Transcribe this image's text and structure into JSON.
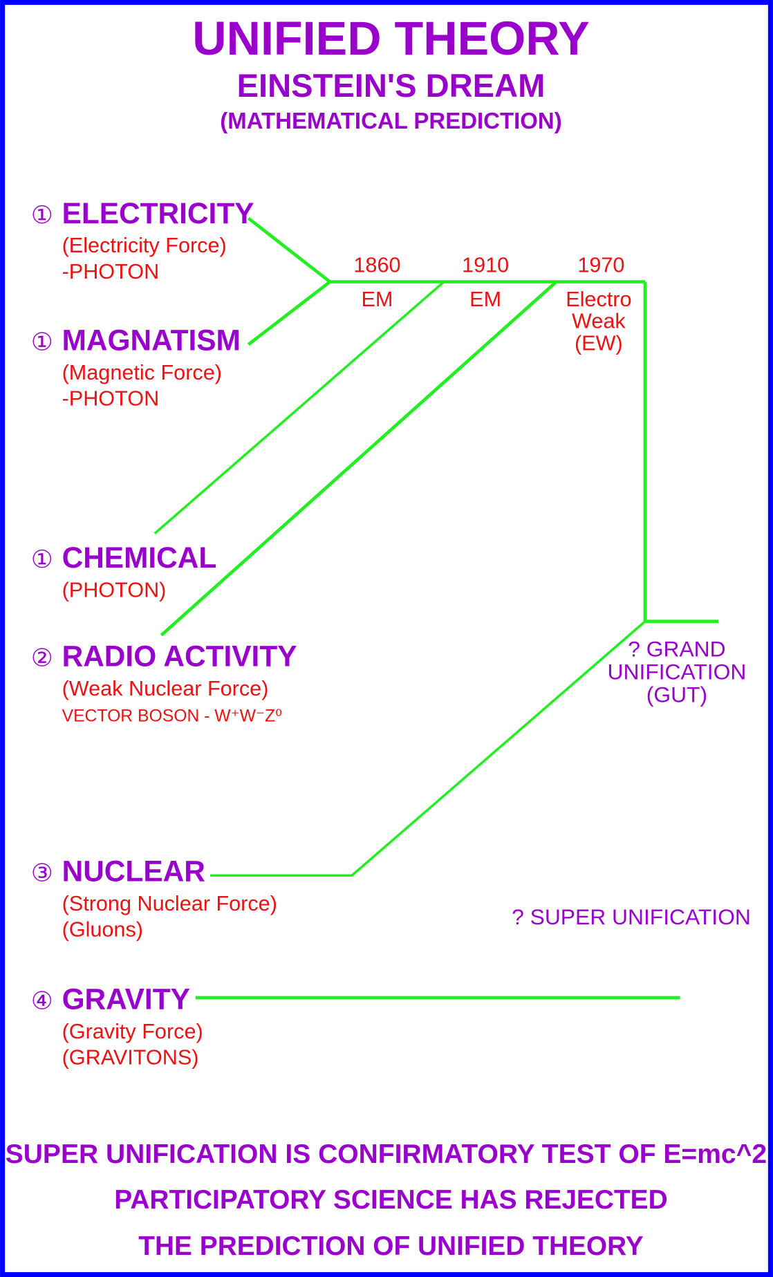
{
  "header": {
    "title": "UNIFIED THEORY",
    "subtitle": "EINSTEIN'S DREAM",
    "note": "(MATHEMATICAL PREDICTION)"
  },
  "forces": [
    {
      "number": "①",
      "name": "ELECTRICITY",
      "lines": [
        "(Electricity Force)",
        "-PHOTON"
      ]
    },
    {
      "number": "①",
      "name": "MAGNATISM",
      "lines": [
        "(Magnetic Force)",
        "-PHOTON"
      ]
    },
    {
      "number": "①",
      "name": "CHEMICAL",
      "lines": [
        "(PHOTON)"
      ]
    },
    {
      "number": "②",
      "name": "RADIO ACTIVITY",
      "lines": [
        "(Weak Nuclear Force)",
        "VECTOR BOSON - W⁺W⁻Z⁰"
      ]
    },
    {
      "number": "③",
      "name": "NUCLEAR",
      "lines": [
        "(Strong Nuclear Force)",
        "(Gluons)"
      ]
    },
    {
      "number": "④",
      "name": "GRAVITY",
      "lines": [
        "(Gravity Force)",
        "(GRAVITONS)"
      ]
    }
  ],
  "unifications": [
    {
      "year": "1860",
      "lines": [
        "EM"
      ]
    },
    {
      "year": "1910",
      "lines": [
        "EM"
      ]
    },
    {
      "year": "1970",
      "lines": [
        "Electro",
        "Weak",
        "(EW)"
      ]
    }
  ],
  "gut": [
    "? GRAND",
    "UNIFICATION",
    "(GUT)"
  ],
  "super": "? SUPER UNIFICATION",
  "footer": [
    "SUPER UNIFICATION IS CONFIRMATORY TEST OF E=mc^2",
    "PARTICIPATORY SCIENCE HAS REJECTED",
    "THE PREDICTION OF UNIFIED THEORY"
  ]
}
